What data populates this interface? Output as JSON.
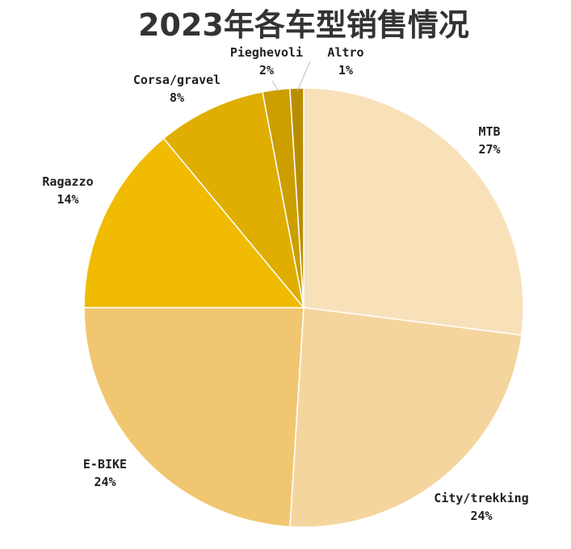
{
  "chart_data": {
    "type": "pie",
    "title": "2023年各车型销售情况",
    "start_angle_deg": 0,
    "direction": "clockwise",
    "slices": [
      {
        "name": "MTB",
        "percent_label": "27%",
        "value": 27,
        "color": "#F8E1B9"
      },
      {
        "name": "City/trekking",
        "percent_label": "24%",
        "value": 24,
        "color": "#F5D59E"
      },
      {
        "name": "E-BIKE",
        "percent_label": "24%",
        "value": 24,
        "color": "#F1C670"
      },
      {
        "name": "Ragazzo",
        "percent_label": "14%",
        "value": 14,
        "color": "#F0BB00"
      },
      {
        "name": "Corsa/gravel",
        "percent_label": "8%",
        "value": 8,
        "color": "#DFAE00"
      },
      {
        "name": "Pieghevoli",
        "percent_label": "2%",
        "value": 2,
        "color": "#CC9E00"
      },
      {
        "name": "Altro",
        "percent_label": "1%",
        "value": 1,
        "color": "#B88E00"
      }
    ],
    "legend": "none",
    "data_labels": "outside"
  }
}
